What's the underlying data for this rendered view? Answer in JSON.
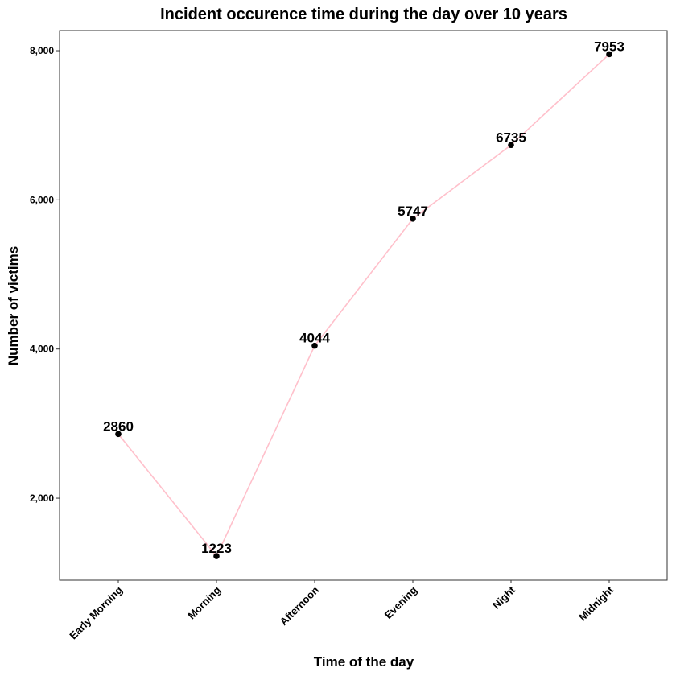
{
  "chart_data": {
    "type": "line",
    "title": "Incident occurence time during the day over 10 years",
    "xlabel": "Time of the day",
    "ylabel": "Number of victims",
    "categories": [
      "Early Morning",
      "Morning",
      "Afternoon",
      "Evening",
      "Night",
      "Midnight"
    ],
    "values": [
      2860,
      1223,
      4044,
      5747,
      6735,
      7953
    ],
    "data_labels": [
      "2860",
      "1223",
      "4044",
      "5747",
      "6735",
      "7953"
    ],
    "yticks": [
      2000,
      4000,
      6000,
      8000
    ],
    "ytick_labels": [
      "2,000",
      "4,000",
      "6,000",
      "8,000"
    ],
    "ylim": [
      900,
      8270
    ],
    "grid": false,
    "legend": "none",
    "line_color": "#ffc0cb",
    "point_color": "#000000"
  }
}
